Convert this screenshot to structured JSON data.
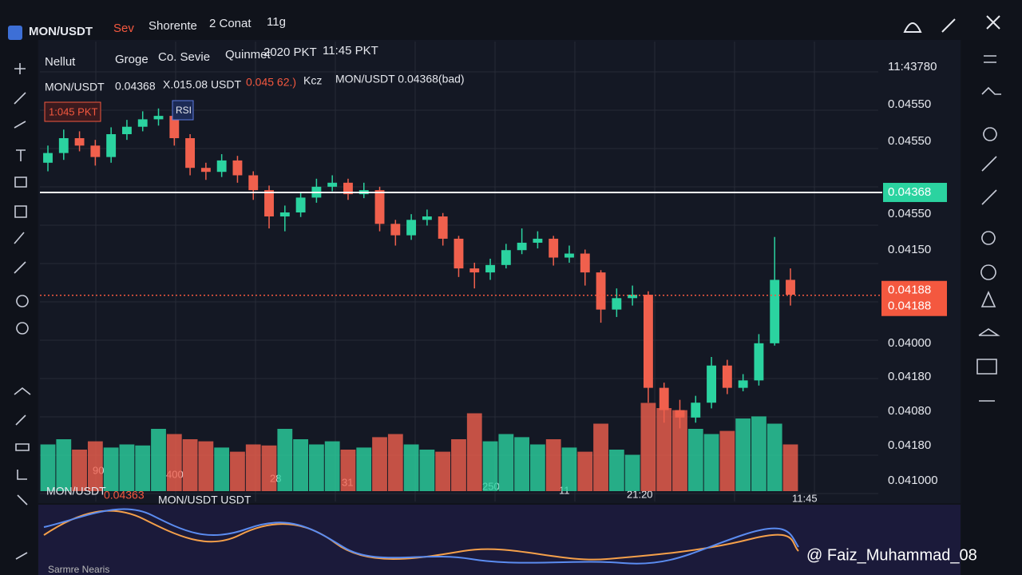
{
  "header": {
    "symbol": "MON/USDT",
    "menu": [
      "Sev",
      "Shorente",
      "2 Conat",
      "11g"
    ]
  },
  "toolbar": {
    "items": [
      "Nellut",
      "Groge",
      "Co. Sevie",
      "Quinmet",
      "2020 PKT",
      "11:45 PKT"
    ]
  },
  "legend": {
    "symbol": "MON/USDT",
    "price": "0.04368",
    "volume": "X.015.08 USDT",
    "change": "0.045 62.)",
    "tag": "Kcz",
    "overlay": "MON/USDT 0.04368(bad)",
    "badge_time": "1:045 PKT",
    "badge_rsi": "RSI"
  },
  "lower_panel": {
    "symbol": "MON/USDT",
    "price": "0.04363",
    "overlay": "MON/USDT USDT",
    "caption": "Sarmre Nearis"
  },
  "watermark": "@ Faiz_Muhammad_08",
  "chart_data": {
    "type": "candlestick",
    "ylim": [
      0.0395,
      0.046
    ],
    "axis_labels": [
      "11:43780",
      "0.04550",
      "0.04550",
      "0.04550",
      "0.04150",
      "0.04000",
      "0.04180",
      "0.04080",
      "0.04180",
      "0.041000"
    ],
    "time_labels": [
      "90",
      "400",
      "28",
      "31",
      "250",
      "11",
      "21:20",
      "11:45"
    ],
    "level_line": {
      "value": 0.04368,
      "label": "0.04368",
      "color": "#ffffff"
    },
    "last_price": {
      "value": 0.04188,
      "label": "0.04188",
      "color": "#f4583f"
    },
    "up_color": "#2bd3a0",
    "down_color": "#f0604d",
    "open": [
      0.0442,
      0.04437,
      0.04463,
      0.0445,
      0.0443,
      0.0447,
      0.04483,
      0.04496,
      0.04502,
      0.04463,
      0.04411,
      0.04404,
      0.04424,
      0.04398,
      0.04372,
      0.04326,
      0.04333,
      0.04359,
      0.04378,
      0.04385,
      0.04365,
      0.04372,
      0.04313,
      0.04293,
      0.0432,
      0.04326,
      0.04287,
      0.04235,
      0.04228,
      0.04241,
      0.04267,
      0.0428,
      0.04287,
      0.04254,
      0.04261,
      0.04228,
      0.04163,
      0.04183,
      0.04189,
      0.04026,
      0.03987,
      0.03974,
      0.04,
      0.04065,
      0.04026,
      0.04039,
      0.04104,
      0.04215
    ],
    "high": [
      0.0445,
      0.04478,
      0.04475,
      0.0446,
      0.04482,
      0.04495,
      0.0451,
      0.04515,
      0.04512,
      0.0447,
      0.0442,
      0.04435,
      0.04432,
      0.04405,
      0.0438,
      0.04345,
      0.04368,
      0.04392,
      0.04398,
      0.04392,
      0.04385,
      0.04378,
      0.0432,
      0.0433,
      0.04338,
      0.04332,
      0.04292,
      0.04245,
      0.04252,
      0.04278,
      0.04305,
      0.043,
      0.04292,
      0.04275,
      0.04268,
      0.04232,
      0.042,
      0.04205,
      0.04195,
      0.04035,
      0.04005,
      0.04012,
      0.0408,
      0.04075,
      0.0405,
      0.0412,
      0.0429,
      0.04235
    ],
    "low": [
      0.04405,
      0.04425,
      0.0444,
      0.04415,
      0.0442,
      0.0446,
      0.04475,
      0.04485,
      0.0445,
      0.04398,
      0.0439,
      0.04395,
      0.04385,
      0.04355,
      0.04305,
      0.043,
      0.04325,
      0.0435,
      0.0437,
      0.04355,
      0.04358,
      0.043,
      0.04275,
      0.04285,
      0.0431,
      0.04275,
      0.0422,
      0.042,
      0.04215,
      0.04235,
      0.0426,
      0.0427,
      0.0424,
      0.04245,
      0.04205,
      0.0414,
      0.0415,
      0.0417,
      0.04,
      0.03965,
      0.03955,
      0.03965,
      0.0399,
      0.04015,
      0.0402,
      0.0403,
      0.041,
      0.0417
    ],
    "close": [
      0.04437,
      0.04463,
      0.0445,
      0.0443,
      0.0447,
      0.04483,
      0.04496,
      0.04502,
      0.04463,
      0.04411,
      0.04404,
      0.04424,
      0.04398,
      0.04372,
      0.04326,
      0.04333,
      0.04359,
      0.04378,
      0.04385,
      0.04365,
      0.04372,
      0.04313,
      0.04293,
      0.0432,
      0.04326,
      0.04287,
      0.04235,
      0.04228,
      0.04241,
      0.04267,
      0.0428,
      0.04287,
      0.04254,
      0.04261,
      0.04228,
      0.04163,
      0.04183,
      0.04189,
      0.04026,
      0.03987,
      0.03974,
      0.04,
      0.04065,
      0.04026,
      0.04039,
      0.04104,
      0.04215,
      0.04189
    ],
    "volume": [
      45,
      50,
      40,
      48,
      42,
      45,
      44,
      60,
      55,
      50,
      48,
      42,
      38,
      45,
      44,
      60,
      50,
      45,
      48,
      40,
      42,
      52,
      55,
      45,
      40,
      38,
      50,
      75,
      48,
      55,
      52,
      45,
      50,
      42,
      38,
      65,
      40,
      35,
      85,
      80,
      78,
      60,
      55,
      58,
      70,
      72,
      65,
      45
    ],
    "vlim": [
      0,
      100
    ]
  }
}
